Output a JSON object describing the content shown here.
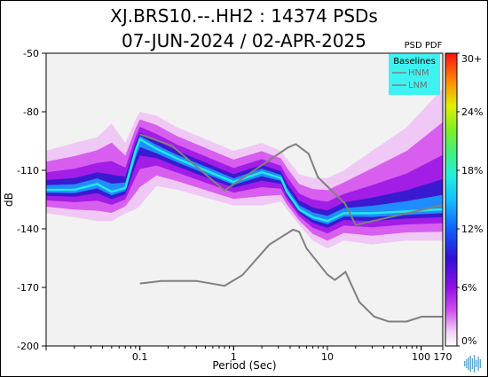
{
  "chart_data": {
    "type": "heatmap",
    "title": "XJ.BRS10.--.HH2 : 14374 PSDs",
    "subtitle": "07-JUN-2024 / 02-APR-2025",
    "xlabel": "Period (Sec)",
    "ylabel": "dB",
    "x_scale": "log",
    "xlim": [
      0.01,
      170
    ],
    "ylim": [
      -200,
      -50
    ],
    "x_ticks": [
      {
        "value": 0.1,
        "label": "0.1"
      },
      {
        "value": 1,
        "label": "1"
      },
      {
        "value": 10,
        "label": "10"
      },
      {
        "value": 100,
        "label": "100"
      },
      {
        "value": 170,
        "label": "170"
      }
    ],
    "y_ticks": [
      -50,
      -80,
      -110,
      -140,
      -170,
      -200
    ],
    "colorbar": {
      "title": "PSD PDF",
      "ticks": [
        "30+",
        "24%",
        "18%",
        "12%",
        "6%",
        "0%"
      ]
    },
    "legend": {
      "title": "Baselines",
      "entries": [
        "HNM",
        "LNM"
      ],
      "position": "top-right"
    },
    "series": [
      {
        "name": "HNM",
        "x": [
          0.1,
          0.22,
          0.8,
          3.8,
          4.6,
          6.3,
          7.9,
          15.4,
          20,
          170
        ],
        "y": [
          -91.5,
          -97.4,
          -120.3,
          -98.3,
          -96.6,
          -101.5,
          -113.5,
          -127,
          -138,
          -127.8
        ]
      },
      {
        "name": "LNM",
        "x": [
          0.1,
          0.17,
          0.4,
          0.8,
          1.24,
          2.4,
          4.3,
          5,
          6,
          10,
          12,
          15.6,
          21.9,
          31.6,
          45,
          70,
          101,
          154,
          170
        ],
        "y": [
          -168,
          -166.7,
          -166.7,
          -169.2,
          -163.7,
          -148.1,
          -140.4,
          -141.5,
          -150,
          -163.4,
          -166.2,
          -162.1,
          -177.5,
          -185,
          -187.5,
          -187.5,
          -185,
          -185,
          -185
        ]
      }
    ],
    "density": [
      {
        "x": 0.01,
        "mode": -120,
        "low": -132,
        "high": -100
      },
      {
        "x": 0.02,
        "mode": -120,
        "low": -134,
        "high": -96
      },
      {
        "x": 0.035,
        "mode": -117,
        "low": -136,
        "high": -93
      },
      {
        "x": 0.05,
        "mode": -121,
        "low": -136,
        "high": -86
      },
      {
        "x": 0.07,
        "mode": -119,
        "low": -132,
        "high": -96
      },
      {
        "x": 0.09,
        "mode": -100,
        "low": -130,
        "high": -84
      },
      {
        "x": 0.1,
        "mode": -94,
        "low": -128,
        "high": -80
      },
      {
        "x": 0.15,
        "mode": -99,
        "low": -118,
        "high": -82
      },
      {
        "x": 0.25,
        "mode": -104,
        "low": -120,
        "high": -88
      },
      {
        "x": 0.5,
        "mode": -110,
        "low": -124,
        "high": -94
      },
      {
        "x": 1,
        "mode": -116,
        "low": -128,
        "high": -100
      },
      {
        "x": 2,
        "mode": -111,
        "low": -128,
        "high": -96
      },
      {
        "x": 3.2,
        "mode": -114,
        "low": -126,
        "high": -100
      },
      {
        "x": 3.7,
        "mode": -121,
        "low": -130,
        "high": -104
      },
      {
        "x": 5,
        "mode": -130,
        "low": -138,
        "high": -112
      },
      {
        "x": 7,
        "mode": -134,
        "low": -146,
        "high": -114
      },
      {
        "x": 10,
        "mode": -136,
        "low": -150,
        "high": -114
      },
      {
        "x": 15,
        "mode": -132,
        "low": -146,
        "high": -110
      },
      {
        "x": 30,
        "mode": -132,
        "low": -148,
        "high": -100
      },
      {
        "x": 70,
        "mode": -131,
        "low": -146,
        "high": -88
      },
      {
        "x": 170,
        "mode": -130,
        "low": -146,
        "high": -68
      }
    ]
  },
  "colors": {
    "plot_background": "#f2f2f2",
    "baseline_line": "#808080",
    "legend_background": "#3ff2f2"
  }
}
